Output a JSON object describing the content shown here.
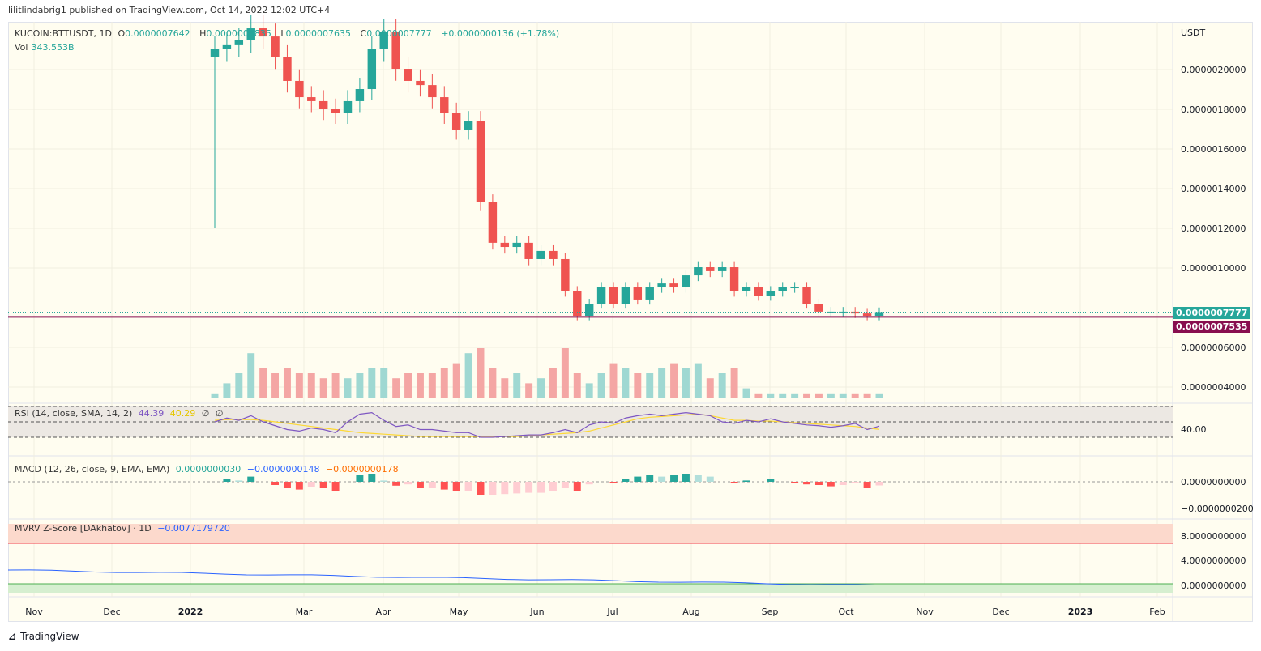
{
  "publisher_line": "lilitlindabrig1 published on TradingView.com, Oct 14, 2022 12:02 UTC+4",
  "legend": {
    "symbol": "KUCOIN:BTTUSDT, 1D",
    "o_label": "O",
    "o": "0.0000007642",
    "h_label": "H",
    "h": "0.0000007835",
    "l_label": "L",
    "l": "0.0000007635",
    "c_label": "C",
    "c": "0.0000007777",
    "change": "+0.0000000136 (+1.78%)",
    "vol_label": "Vol",
    "vol": "343.553B"
  },
  "rsi_legend": {
    "title": "RSI (14, close, SMA, 14, 2)",
    "rsi": "44.39",
    "ma": "40.29",
    "v3": "∅",
    "v4": "∅",
    "axis_label": "40.00"
  },
  "macd_legend": {
    "title": "MACD (12, 26, close, 9, EMA, EMA)",
    "hist": "0.0000000030",
    "macd": "−0.0000000148",
    "signal": "−0.0000000178",
    "axis": [
      "0.0000000000",
      "−0.0000000200"
    ]
  },
  "mvrv_legend": {
    "title": "MVRV Z-Score [DAkhatov] · 1D",
    "value": "−0.0077179720",
    "axis": [
      "8.0000000000",
      "4.0000000000",
      "0.0000000000"
    ]
  },
  "price_labels": {
    "last": "0.0000007777",
    "line": "0.0000007535"
  },
  "footer": {
    "brand": "TradingView"
  },
  "colors": {
    "up": "#26a69a",
    "down": "#ef5350",
    "rsi": "#7e57c2",
    "rsi_ma": "#fdd835",
    "macd": "#2962ff",
    "signal": "#ff6d00",
    "line": "#880e4f",
    "bg": "#fffdf0"
  },
  "chart_data": {
    "type": "candlestick",
    "currency": "USDT",
    "x_ticks": [
      "Nov",
      "Dec",
      "2022",
      "Mar",
      "Apr",
      "May",
      "Jun",
      "Jul",
      "Aug",
      "Sep",
      "Oct",
      "Nov",
      "Dec",
      "2023",
      "Feb"
    ],
    "y_ticks": [
      "0.0000020000",
      "0.0000018000",
      "0.0000016000",
      "0.0000014000",
      "0.0000012000",
      "0.0000010000",
      "0.0000006000",
      "0.0000004000"
    ],
    "y_tick_values": [
      2e-06,
      1.8e-06,
      1.6e-06,
      1.4e-06,
      1.2e-06,
      1e-06,
      6e-07,
      4e-07
    ],
    "horizontal_line": 7.535e-07,
    "close": [
      2.106e-06,
      2.127e-06,
      2.147e-06,
      2.208e-06,
      2.167e-06,
      2.065e-06,
      1.943e-06,
      1.861e-06,
      1.841e-06,
      1.8e-06,
      1.78e-06,
      1.841e-06,
      1.902e-06,
      2.106e-06,
      2.188e-06,
      2.004e-06,
      1.943e-06,
      1.922e-06,
      1.861e-06,
      1.78e-06,
      1.698e-06,
      1.739e-06,
      1.331e-06,
      1.127e-06,
      1.106e-06,
      1.127e-06,
      1.045e-06,
      1.086e-06,
      1.045e-06,
      8.82e-07,
      7.59e-07,
      8.2e-07,
      9.02e-07,
      8.2e-07,
      9.02e-07,
      8.41e-07,
      9.02e-07,
      9.22e-07,
      9.02e-07,
      9.63e-07,
      1.004e-06,
      9.84e-07,
      1.004e-06,
      8.82e-07,
      9.02e-07,
      8.61e-07,
      8.82e-07,
      9.02e-07,
      9.02e-07,
      8.2e-07,
      7.8e-07,
      7.8e-07,
      7.8e-07,
      7.71e-07,
      7.59e-07,
      7.777e-07
    ],
    "volume_rel": [
      0.1,
      0.3,
      0.5,
      0.9,
      0.6,
      0.5,
      0.6,
      0.5,
      0.5,
      0.4,
      0.5,
      0.4,
      0.5,
      0.6,
      0.6,
      0.4,
      0.5,
      0.5,
      0.5,
      0.6,
      0.7,
      0.9,
      1.0,
      0.6,
      0.4,
      0.5,
      0.3,
      0.4,
      0.6,
      1.0,
      0.5,
      0.3,
      0.5,
      0.7,
      0.6,
      0.5,
      0.5,
      0.6,
      0.7,
      0.6,
      0.7,
      0.4,
      0.5,
      0.6,
      0.2,
      0.1,
      0.1,
      0.1,
      0.1,
      0.1,
      0.1,
      0.1,
      0.1,
      0.1,
      0.1,
      0.1
    ],
    "rsi": [
      50,
      55,
      52,
      58,
      50,
      45,
      40,
      38,
      42,
      40,
      36,
      50,
      60,
      62,
      52,
      44,
      46,
      40,
      40,
      38,
      36,
      36,
      30,
      30,
      31,
      32,
      33,
      33,
      36,
      40,
      36,
      46,
      50,
      48,
      55,
      58,
      60,
      58,
      60,
      62,
      60,
      58,
      50,
      48,
      52,
      50,
      54,
      50,
      48,
      46,
      45,
      43,
      45,
      48,
      40,
      44.39
    ],
    "rsi_ma": [
      52,
      53,
      53,
      53,
      52,
      50,
      48,
      46,
      44,
      42,
      40,
      38,
      36,
      35,
      34,
      33,
      32,
      31,
      31,
      31,
      31,
      31,
      31,
      31,
      31,
      31,
      32,
      33,
      34,
      35,
      36,
      38,
      42,
      46,
      50,
      54,
      56,
      57,
      58,
      59,
      60,
      58,
      55,
      52,
      52,
      51,
      51,
      50,
      49,
      48,
      47,
      46,
      45,
      44,
      42,
      40.29
    ],
    "mvrv_start": 2.5,
    "mvrv_end": -0.007717972
  }
}
